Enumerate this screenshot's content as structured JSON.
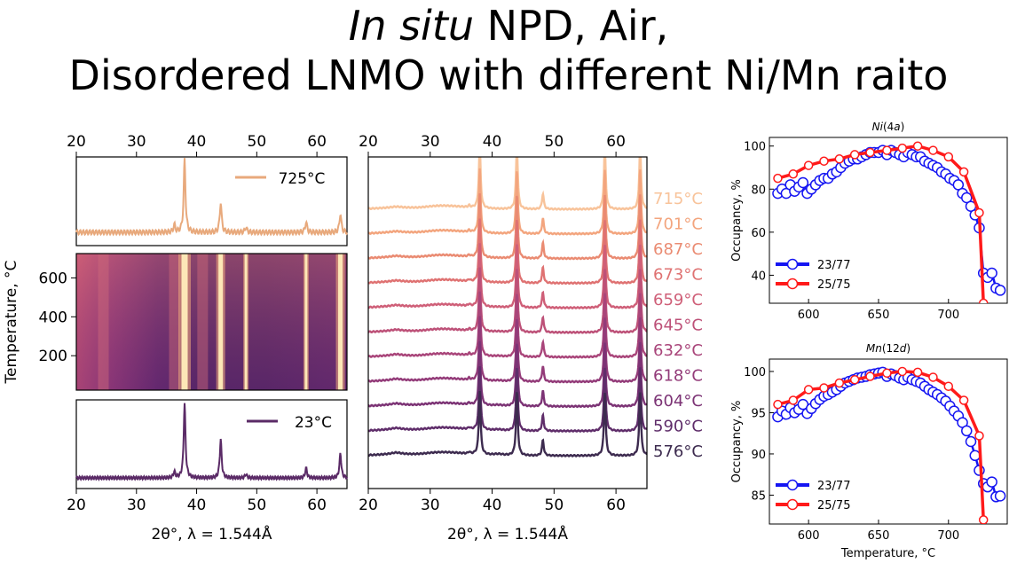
{
  "title": {
    "line1_italic": "In situ",
    "line1_rest": " NPD, Air,",
    "line2": "Disordered LNMO with different Ni/Mn raito"
  },
  "colors": {
    "heat_low": "#4a1f63",
    "heat_mid": "#b3467a",
    "heat_high": "#f7b07d",
    "top_pattern": "#e8a97c",
    "bottom_pattern": "#5a2a66",
    "series_23_77": "#1515f2",
    "series_25_75": "#ff1a1a"
  },
  "chart_data": [
    {
      "type": "line",
      "panel": "top-pattern",
      "legend": [
        "725°C"
      ],
      "legend_placement": "top-right",
      "xlim": [
        20,
        65
      ],
      "x_ticks": [
        20,
        30,
        40,
        50,
        60
      ],
      "peaks_2theta": [
        36.3,
        38.0,
        44.0,
        48.2,
        58.2,
        63.9
      ],
      "peak_relative_intensity": [
        0.1,
        1.0,
        0.42,
        0.07,
        0.14,
        0.26
      ]
    },
    {
      "type": "heatmap",
      "panel": "temperature-map",
      "ylabel": "Temperature, °C",
      "y_ticks": [
        200,
        400,
        600
      ],
      "ylim": [
        23,
        725
      ],
      "xlim": [
        20,
        65
      ],
      "bright_lines_2theta": [
        38.0,
        44.0,
        48.2,
        58.2,
        63.9
      ],
      "diffuse_bands_2theta": [
        24.5,
        36.3,
        41.0
      ]
    },
    {
      "type": "line",
      "panel": "bottom-pattern",
      "legend": [
        "23°C"
      ],
      "legend_placement": "top-right",
      "xlim": [
        20,
        65
      ],
      "x_ticks": [
        20,
        30,
        40,
        50,
        60
      ],
      "xlabel": "2θ°, λ = 1.544Å",
      "peaks_2theta": [
        36.3,
        38.0,
        44.0,
        48.2,
        58.2,
        63.9
      ],
      "peak_relative_intensity": [
        0.08,
        1.0,
        0.52,
        0.05,
        0.13,
        0.33
      ]
    },
    {
      "type": "line",
      "panel": "stacked-patterns",
      "xlim": [
        20,
        65
      ],
      "x_ticks": [
        20,
        30,
        40,
        50,
        60
      ],
      "xlabel": "2θ°, λ = 1.544Å",
      "temperatures": [
        "715°C",
        "701°C",
        "687°C",
        "673°C",
        "659°C",
        "645°C",
        "632°C",
        "618°C",
        "604°C",
        "590°C",
        "576°C"
      ],
      "trace_colors": [
        "#f8c39a",
        "#f3a57e",
        "#ea8b72",
        "#df7272",
        "#cf5f78",
        "#bd5178",
        "#a9457a",
        "#933b79",
        "#7c3375",
        "#5f2d6a",
        "#3d2b4f"
      ]
    },
    {
      "type": "line",
      "panel": "ni-4a",
      "title_main": "Ni",
      "title_site_open": "(4",
      "title_site_letter": "a",
      "title_site_close": ")",
      "ylabel": "Occupancy, %",
      "xlim": [
        572,
        742
      ],
      "ylim": [
        27,
        104
      ],
      "x_ticks": [
        600,
        650,
        700
      ],
      "y_ticks": [
        40,
        60,
        80,
        100
      ],
      "legend_placement": "lower-left",
      "series": [
        {
          "name": "23/77",
          "x": [
            578,
            581,
            584,
            587,
            590,
            593,
            596,
            599,
            602,
            605,
            608,
            611,
            614,
            617,
            620,
            623,
            626,
            629,
            632,
            635,
            638,
            641,
            644,
            647,
            650,
            653,
            656,
            659,
            662,
            665,
            668,
            671,
            674,
            677,
            680,
            683,
            686,
            689,
            692,
            695,
            698,
            701,
            704,
            707,
            710,
            713,
            716,
            719,
            722,
            725,
            728,
            731,
            734,
            737
          ],
          "y": [
            78,
            80,
            78,
            82,
            79,
            81,
            83,
            78,
            80,
            82,
            84,
            85,
            85,
            87,
            88,
            90,
            92,
            93,
            94,
            94,
            95,
            96,
            97,
            97,
            97,
            98,
            96,
            98,
            97,
            96,
            95,
            97,
            96,
            95,
            95,
            93,
            92,
            91,
            90,
            88,
            87,
            85,
            84,
            82,
            78,
            76,
            72,
            68,
            62,
            41,
            39,
            41,
            34,
            33
          ]
        },
        {
          "name": "25/75",
          "x": [
            578,
            589,
            600,
            611,
            622,
            633,
            644,
            656,
            667,
            678,
            689,
            700,
            711,
            722,
            725
          ],
          "y": [
            85,
            87,
            91,
            93,
            94,
            96,
            97,
            98,
            99,
            100,
            98,
            95,
            88,
            69,
            27
          ]
        }
      ]
    },
    {
      "type": "line",
      "panel": "mn-12d",
      "title_main": "Mn",
      "title_site_open": "(12",
      "title_site_letter": "d",
      "title_site_close": ")",
      "xlabel": "Temperature, °C",
      "ylabel": "Occupancy, %",
      "xlim": [
        572,
        742
      ],
      "ylim": [
        81.5,
        101.5
      ],
      "x_ticks": [
        600,
        650,
        700
      ],
      "y_ticks": [
        85,
        90,
        95,
        100
      ],
      "legend_placement": "lower-left",
      "series": [
        {
          "name": "23/77",
          "x": [
            578,
            581,
            584,
            587,
            590,
            593,
            596,
            599,
            602,
            605,
            608,
            611,
            614,
            617,
            620,
            623,
            626,
            629,
            632,
            635,
            638,
            641,
            644,
            647,
            650,
            653,
            656,
            659,
            662,
            665,
            668,
            671,
            674,
            677,
            680,
            683,
            686,
            689,
            692,
            695,
            698,
            701,
            704,
            707,
            710,
            713,
            716,
            719,
            722,
            725,
            728,
            731,
            734,
            737
          ],
          "y": [
            94.5,
            95.2,
            94.8,
            95.6,
            95.0,
            95.4,
            96.0,
            94.9,
            95.5,
            96.1,
            96.6,
            97.0,
            97.2,
            97.5,
            97.8,
            98.2,
            98.6,
            98.8,
            99.0,
            99.2,
            99.3,
            99.4,
            99.6,
            99.7,
            99.8,
            99.9,
            99.4,
            99.7,
            99.5,
            99.2,
            99.0,
            99.3,
            99.0,
            98.8,
            98.6,
            98.2,
            97.8,
            97.5,
            97.2,
            96.8,
            96.4,
            95.8,
            95.2,
            94.6,
            93.8,
            92.8,
            91.5,
            89.8,
            88.0,
            86.4,
            86.0,
            86.6,
            84.8,
            84.9
          ]
        },
        {
          "name": "25/75",
          "x": [
            578,
            589,
            600,
            611,
            622,
            633,
            644,
            656,
            667,
            678,
            689,
            700,
            711,
            722,
            725
          ],
          "y": [
            96.0,
            96.5,
            97.8,
            98.0,
            98.6,
            99.0,
            99.4,
            99.8,
            100.0,
            99.9,
            99.3,
            98.2,
            96.5,
            92.2,
            82.0
          ]
        }
      ]
    }
  ]
}
